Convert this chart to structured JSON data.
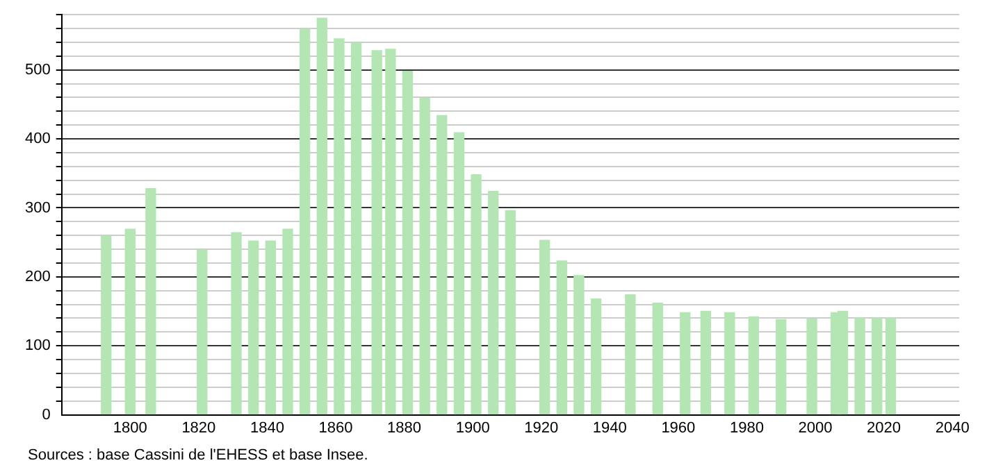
{
  "chart_data": {
    "type": "bar",
    "x": [
      1793,
      1800,
      1806,
      1821,
      1831,
      1836,
      1841,
      1846,
      1851,
      1856,
      1861,
      1866,
      1872,
      1876,
      1881,
      1886,
      1891,
      1896,
      1901,
      1906,
      1911,
      1921,
      1926,
      1931,
      1936,
      1946,
      1954,
      1962,
      1968,
      1975,
      1982,
      1990,
      1999,
      2006,
      2008,
      2013,
      2018,
      2022
    ],
    "values": [
      259,
      269,
      328,
      239,
      264,
      252,
      252,
      269,
      559,
      575,
      545,
      539,
      528,
      530,
      498,
      459,
      434,
      409,
      348,
      324,
      296,
      253,
      223,
      202,
      168,
      174,
      162,
      148,
      150,
      148,
      142,
      138,
      139,
      148,
      150,
      140,
      140,
      140
    ],
    "color": "#b3e6b3",
    "xlim": [
      1780,
      2042
    ],
    "xticks": [
      1800,
      1820,
      1840,
      1860,
      1880,
      1900,
      1920,
      1940,
      1960,
      1980,
      2000,
      2020,
      2040
    ],
    "ylim": [
      0,
      580
    ],
    "yticks": [
      0,
      {
        "value": 20,
        "label": null
      },
      {
        "value": 40,
        "label": null
      },
      {
        "value": 60,
        "label": null
      },
      {
        "value": 80,
        "label": null
      },
      100,
      {
        "value": 120,
        "label": null
      },
      {
        "value": 140,
        "label": null
      },
      {
        "value": 160,
        "label": null
      },
      {
        "value": 180,
        "label": null
      },
      200,
      {
        "value": 220,
        "label": null
      },
      {
        "value": 240,
        "label": null
      },
      {
        "value": 260,
        "label": null
      },
      {
        "value": 280,
        "label": null
      },
      300,
      {
        "value": 320,
        "label": null
      },
      {
        "value": 340,
        "label": null
      },
      {
        "value": 360,
        "label": null
      },
      {
        "value": 380,
        "label": null
      },
      400,
      {
        "value": 420,
        "label": null
      },
      {
        "value": 440,
        "label": null
      },
      {
        "value": 460,
        "label": null
      },
      {
        "value": 480,
        "label": null
      },
      500,
      {
        "value": 520,
        "label": null
      },
      {
        "value": 540,
        "label": null
      },
      {
        "value": 560,
        "label": null
      },
      {
        "value": 580,
        "label": null
      }
    ],
    "grid": "y",
    "annotations": [
      "Sources : base Cassini de l'EHESS et base Insee."
    ]
  }
}
